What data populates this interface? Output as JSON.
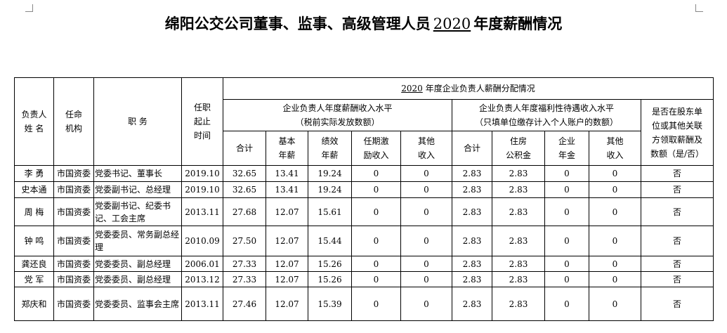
{
  "title": [
    "绵阳公交公司董事、监事、高级管理人员",
    "2020",
    "年度薪酬情况"
  ],
  "table": {
    "headers": {
      "name": [
        "负责人",
        "姓 名"
      ],
      "org": [
        "任命",
        "机构"
      ],
      "position": [
        "职 务"
      ],
      "term": [
        "任职",
        "起止",
        "时间"
      ],
      "group": [
        "2020",
        "年度企业负责人薪酬分配情况"
      ],
      "salary": [
        "企业负责人年度薪酬收入水平",
        "（税前实际发放数额）"
      ],
      "welfare": [
        "企业负责人年度福利性待遇收入水平",
        "（只填单位缴存计入个人账户的数额）"
      ],
      "related": [
        "是否在股东单",
        "位或其他关联",
        "方领取薪酬及",
        "数额（是/否）"
      ],
      "sub": [
        [
          "合计"
        ],
        [
          "基本",
          "年薪"
        ],
        [
          "绩效",
          "年薪"
        ],
        [
          "任期激",
          "励收入"
        ],
        [
          "其他",
          "收入"
        ],
        [
          "合计"
        ],
        [
          "住房",
          "公积金"
        ],
        [
          "企业",
          "年金"
        ],
        [
          "其他",
          "收入"
        ]
      ]
    },
    "rows": [
      [
        "李 勇",
        "市国资委",
        "党委书记、董事长",
        "2019.10",
        "32.65",
        "13.41",
        "19.24",
        "0",
        "0",
        "2.83",
        "2.83",
        "0",
        "0",
        "否"
      ],
      [
        "史本通",
        "市国资委",
        "党委副书记、总经理",
        "2019.10",
        "32.65",
        "13.41",
        "19.24",
        "0",
        "0",
        "2.83",
        "2.83",
        "0",
        "0",
        "否"
      ],
      [
        "周 梅",
        "市国资委",
        "党委副书记、纪委书记、工会主席",
        "2013.11",
        "27.68",
        "12.07",
        "15.61",
        "0",
        "0",
        "2.83",
        "2.83",
        "0",
        "0",
        "否"
      ],
      [
        "钟 鸣",
        "市国资委",
        "党委委员、常务副总经理",
        "2010.09",
        "27.50",
        "12.07",
        "15.44",
        "0",
        "0",
        "2.83",
        "2.83",
        "0",
        "0",
        "否"
      ],
      [
        "龚还良",
        "市国资委",
        "党委委员、副总经理",
        "2006.01",
        "27.33",
        "12.07",
        "15.26",
        "0",
        "0",
        "2.83",
        "2.83",
        "0",
        "0",
        "否"
      ],
      [
        "党 军",
        "市国资委",
        "党委委员、副总经理",
        "2013.12",
        "27.33",
        "12.07",
        "15.26",
        "0",
        "0",
        "2.83",
        "2.83",
        "0",
        "0",
        "否"
      ],
      [
        "郑庆和",
        "市国资委",
        "党委委员、监事会主席",
        "2013.11",
        "27.46",
        "12.07",
        "15.39",
        "0",
        "0",
        "2.83",
        "2.83",
        "0",
        "0",
        "否"
      ]
    ]
  }
}
